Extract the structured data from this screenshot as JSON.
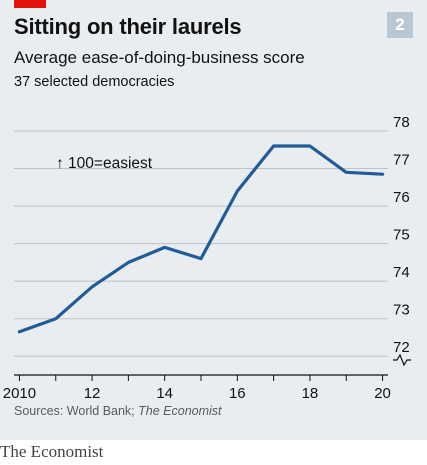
{
  "header": {
    "title": "Sitting on their laurels",
    "subtitle": "Average ease-of-doing-business score",
    "subsubtitle": "37 selected democracies",
    "badge": "2"
  },
  "footer": {
    "source_prefix": "Sources: World Bank; ",
    "source_italic": "The Economist",
    "brand": "The Economist"
  },
  "colors": {
    "line": "#1f5c99",
    "accent_red": "#e3120b",
    "panel": "#e9edf0"
  },
  "chart_data": {
    "type": "line",
    "title": "Sitting on their laurels",
    "subtitle": "Average ease-of-doing-business score",
    "annotation": "↑ 100=easiest",
    "x": [
      2010,
      2011,
      2012,
      2013,
      2014,
      2015,
      2016,
      2017,
      2018,
      2019,
      2020
    ],
    "x_tick_labels": [
      "2010",
      "12",
      "14",
      "16",
      "18",
      "20"
    ],
    "x_tick_values": [
      2010,
      2012,
      2014,
      2016,
      2018,
      2020
    ],
    "series": [
      {
        "values": [
          72.65,
          73.0,
          73.85,
          74.5,
          74.9,
          74.6,
          76.4,
          77.6,
          77.6,
          76.9,
          76.85
        ]
      }
    ],
    "y_tick_values": [
      72,
      73,
      74,
      75,
      76,
      77,
      78
    ],
    "ylim": [
      71.5,
      78
    ],
    "y_axis_break": true,
    "y_axis_side": "right",
    "grid": true,
    "xlim": [
      2009.85,
      2020.15
    ]
  }
}
